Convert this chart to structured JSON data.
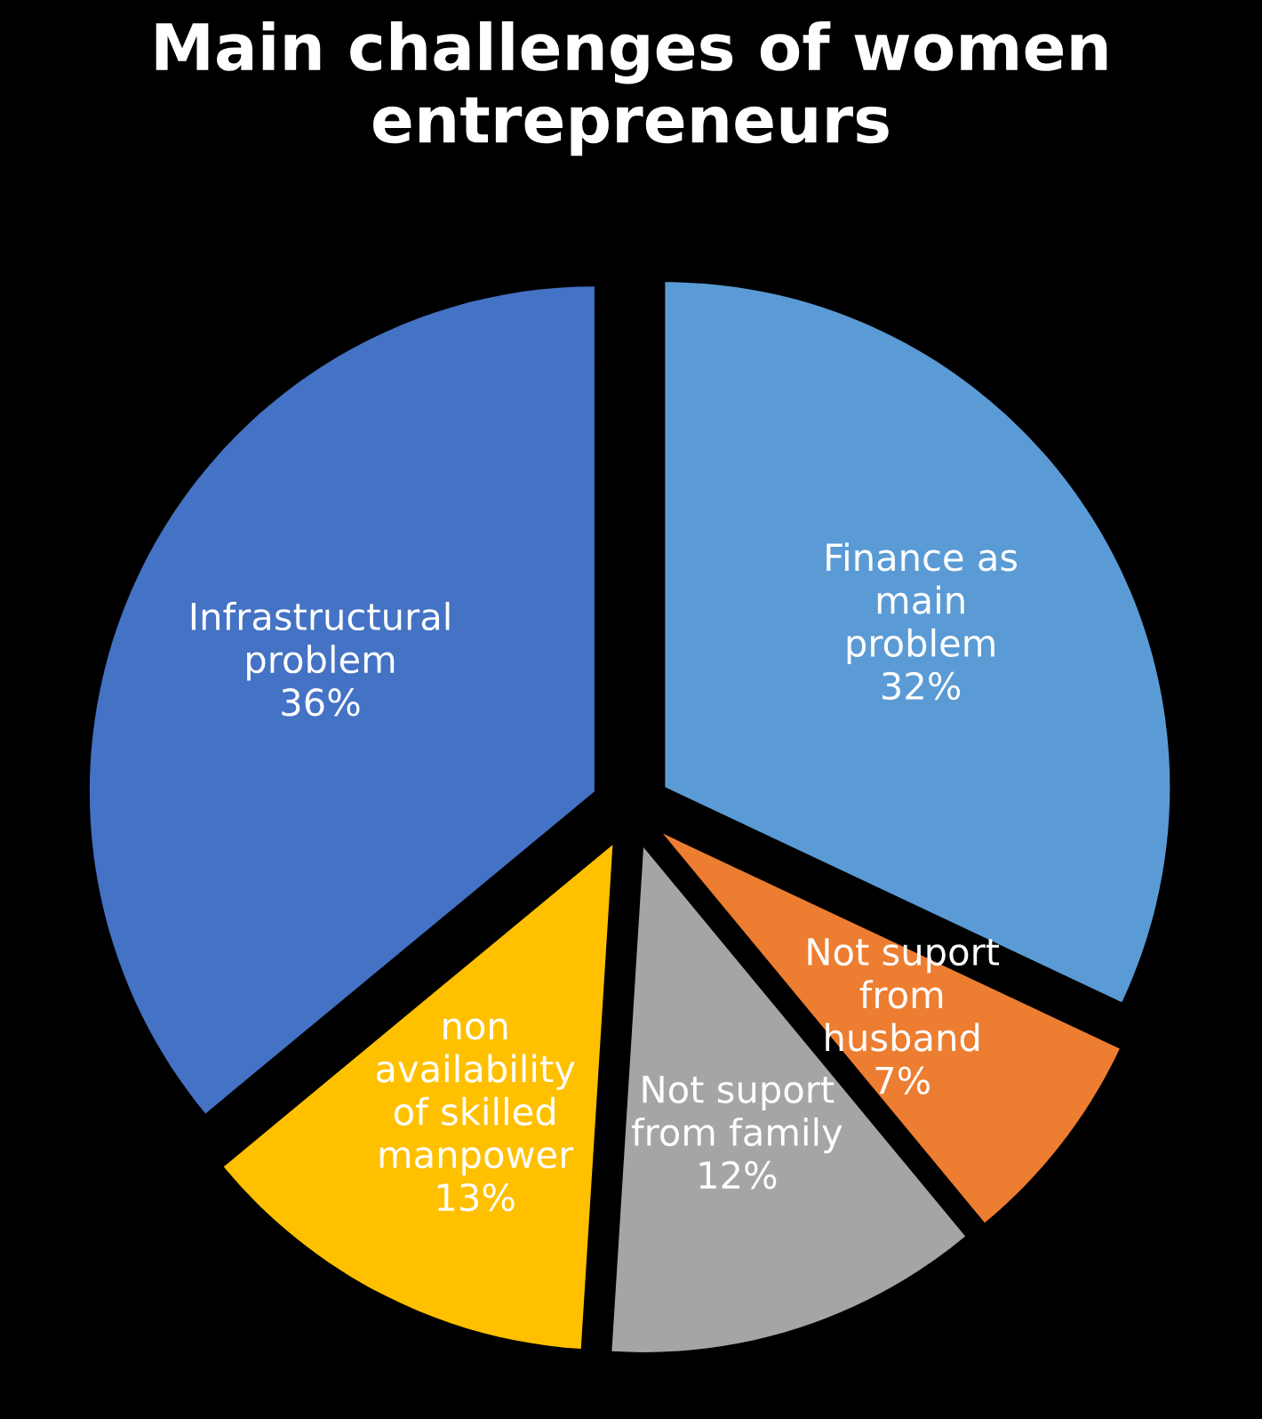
{
  "chart_data": {
    "type": "pie",
    "title": "Main challenges of women entrepreneurs",
    "categories": [
      "Finance as main problem",
      "Not suport from husband",
      "Not suport from family",
      "non availability of skilled manpower",
      "Infrastructural problem"
    ],
    "values": [
      32,
      7,
      12,
      13,
      36
    ],
    "value_labels": [
      "32%",
      "7%",
      "12%",
      "13%",
      "36%"
    ],
    "colors": [
      "#5b9bd5",
      "#ed7d31",
      "#a5a5a5",
      "#ffc000",
      "#4472c4"
    ],
    "legend": false
  }
}
